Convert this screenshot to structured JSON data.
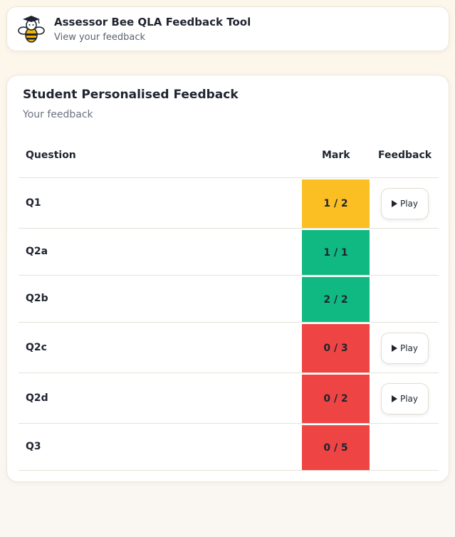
{
  "header": {
    "title": "Assessor Bee QLA Feedback Tool",
    "subtitle": "View your feedback",
    "logo_icon": "bee-graduate-icon"
  },
  "card": {
    "title": "Student Personalised Feedback",
    "subtitle": "Your feedback"
  },
  "table": {
    "headers": {
      "question": "Question",
      "mark": "Mark",
      "feedback": "Feedback"
    },
    "rows": [
      {
        "question": "Q1",
        "mark": "1 / 2",
        "status_color": "#fbbf24",
        "has_play": true,
        "play_label": "Play"
      },
      {
        "question": "Q2a",
        "mark": "1 / 1",
        "status_color": "#10b981",
        "has_play": false
      },
      {
        "question": "Q2b",
        "mark": "2 / 2",
        "status_color": "#10b981",
        "has_play": false
      },
      {
        "question": "Q2c",
        "mark": "0 / 3",
        "status_color": "#ef4444",
        "has_play": true,
        "play_label": "Play"
      },
      {
        "question": "Q2d",
        "mark": "0 / 2",
        "status_color": "#ef4444",
        "has_play": true,
        "play_label": "Play"
      },
      {
        "question": "Q3",
        "mark": "0 / 5",
        "status_color": "#ef4444",
        "has_play": false
      }
    ]
  },
  "colors": {
    "partial": "#fbbf24",
    "full": "#10b981",
    "zero": "#ef4444"
  }
}
